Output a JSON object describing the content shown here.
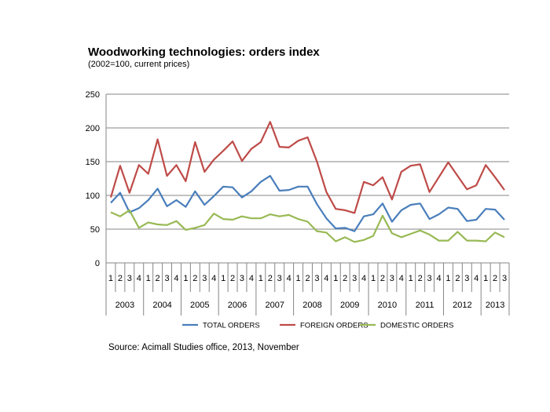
{
  "chart_data": {
    "type": "line",
    "title": "Woodworking technologies: orders index",
    "subtitle": "(2002=100, current prices)",
    "source": "Source: Acimall Studies office, 2013, November",
    "ylim": [
      0,
      250
    ],
    "yticks": [
      "0",
      "50",
      "100",
      "150",
      "200",
      "250"
    ],
    "grid": true,
    "legend_position": "bottom",
    "quarters": [
      "1",
      "2",
      "3",
      "4",
      "1",
      "2",
      "3",
      "4",
      "1",
      "2",
      "3",
      "4",
      "1",
      "2",
      "3",
      "4",
      "1",
      "2",
      "3",
      "4",
      "1",
      "2",
      "3",
      "4",
      "1",
      "2",
      "3",
      "4",
      "1",
      "2",
      "3",
      "4",
      "1",
      "2",
      "3",
      "4",
      "1",
      "2",
      "3",
      "4",
      "1",
      "2",
      "3"
    ],
    "years": [
      {
        "label": "2003",
        "count": 4
      },
      {
        "label": "2004",
        "count": 4
      },
      {
        "label": "2005",
        "count": 4
      },
      {
        "label": "2006",
        "count": 4
      },
      {
        "label": "2007",
        "count": 4
      },
      {
        "label": "2008",
        "count": 4
      },
      {
        "label": "2009",
        "count": 4
      },
      {
        "label": "2010",
        "count": 4
      },
      {
        "label": "2011",
        "count": 4
      },
      {
        "label": "2012",
        "count": 4
      },
      {
        "label": "2013",
        "count": 3
      }
    ],
    "series": [
      {
        "name": "TOTAL ORDERS",
        "color": "#4a7ebb",
        "values": [
          89,
          104,
          75,
          81,
          93,
          110,
          84,
          93,
          83,
          106,
          86,
          99,
          113,
          112,
          97,
          106,
          120,
          129,
          107,
          108,
          113,
          113,
          87,
          66,
          51,
          52,
          47,
          69,
          72,
          88,
          61,
          78,
          86,
          88,
          65,
          72,
          82,
          80,
          62,
          64,
          80,
          79,
          64
        ]
      },
      {
        "name": "FOREIGN ORDERS",
        "color": "#be4b48",
        "values": [
          97,
          144,
          104,
          145,
          132,
          183,
          129,
          145,
          121,
          179,
          135,
          153,
          166,
          180,
          151,
          169,
          179,
          209,
          172,
          171,
          181,
          186,
          150,
          105,
          80,
          78,
          74,
          120,
          115,
          127,
          94,
          135,
          144,
          146,
          105,
          127,
          149,
          129,
          109,
          115,
          145,
          127,
          108
        ]
      },
      {
        "name": "DOMESTIC ORDERS",
        "color": "#98b954",
        "values": [
          75,
          69,
          78,
          52,
          60,
          57,
          56,
          62,
          49,
          52,
          56,
          73,
          65,
          64,
          69,
          66,
          66,
          72,
          69,
          71,
          65,
          61,
          47,
          45,
          32,
          38,
          31,
          34,
          40,
          70,
          44,
          38,
          43,
          48,
          42,
          33,
          33,
          46,
          33,
          33,
          32,
          45,
          38
        ]
      }
    ]
  }
}
